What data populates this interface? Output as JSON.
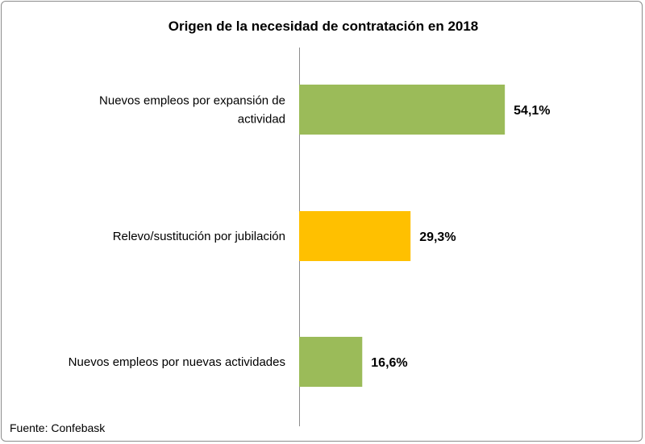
{
  "chart_data": {
    "type": "bar",
    "orientation": "horizontal",
    "title": "Origen de la necesidad de contratación  en 2018",
    "categories": [
      [
        "Nuevos empleos por expansión de",
        "actividad"
      ],
      [
        "Relevo/sustitución por jubilación"
      ],
      [
        "Nuevos empleos por nuevas actividades"
      ]
    ],
    "values": [
      54.1,
      29.3,
      16.6
    ],
    "value_labels": [
      "54,1%",
      "29,3%",
      "16,6%"
    ],
    "colors": [
      "#9bbb59",
      "#ffc000",
      "#9bbb59"
    ],
    "xlim": [
      0,
      60
    ],
    "xlabel": "",
    "ylabel": "",
    "grid": false,
    "source": "Fuente: Confebask"
  }
}
